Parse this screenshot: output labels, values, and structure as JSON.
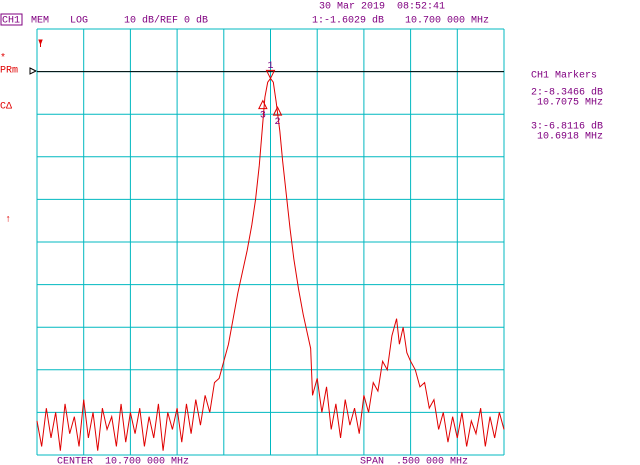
{
  "screen": {
    "channel": "CH1",
    "memory": "MEM",
    "format": "LOG",
    "scale": "10 dB/REF 0 dB",
    "datetime": "30 Mar 2019  08:52:41",
    "active_readout": "1:-1.6029 dB",
    "active_freq": "10.700 000 MHz",
    "left_labels": [
      "*",
      "PRm",
      "CΔ",
      "↑"
    ],
    "side_title": "CH1 Markers",
    "side_readouts": [
      [
        "2:-8.3466 dB",
        "10.7075 MHz"
      ],
      [
        "3:-6.8116 dB",
        "10.6918 MHz"
      ]
    ],
    "center": "CENTER  10.700 000 MHz",
    "span": "SPAN  .500 000 MHz"
  },
  "chart_data": {
    "type": "line",
    "xlim": [
      10.45,
      10.95
    ],
    "ylim": [
      -90,
      10
    ],
    "grid": true,
    "ref_level": 0,
    "x": [
      10.45,
      10.455,
      10.46,
      10.465,
      10.47,
      10.475,
      10.48,
      10.485,
      10.49,
      10.495,
      10.5,
      10.505,
      10.51,
      10.515,
      10.52,
      10.525,
      10.53,
      10.535,
      10.54,
      10.545,
      10.55,
      10.555,
      10.56,
      10.565,
      10.57,
      10.575,
      10.58,
      10.585,
      10.59,
      10.595,
      10.6,
      10.605,
      10.61,
      10.615,
      10.62,
      10.625,
      10.63,
      10.635,
      10.64,
      10.645,
      10.65,
      10.655,
      10.66,
      10.665,
      10.67,
      10.675,
      10.68,
      10.684,
      10.688,
      10.691,
      10.694,
      10.697,
      10.7,
      10.703,
      10.706,
      10.71,
      10.713,
      10.717,
      10.721,
      10.725,
      10.73,
      10.735,
      10.74,
      10.743,
      10.745,
      10.75,
      10.755,
      10.76,
      10.765,
      10.77,
      10.775,
      10.78,
      10.785,
      10.79,
      10.795,
      10.8,
      10.805,
      10.81,
      10.815,
      10.82,
      10.825,
      10.83,
      10.835,
      10.838,
      10.842,
      10.846,
      10.85,
      10.855,
      10.86,
      10.865,
      10.87,
      10.875,
      10.88,
      10.885,
      10.89,
      10.895,
      10.9,
      10.905,
      10.91,
      10.915,
      10.92,
      10.925,
      10.93,
      10.935,
      10.94,
      10.945,
      10.95
    ],
    "series": [
      {
        "color": "#e00000",
        "values": [
          -82,
          -88,
          -79,
          -86,
          -80,
          -89,
          -78,
          -85,
          -81,
          -88,
          -77,
          -86,
          -80,
          -89,
          -79,
          -84,
          -81,
          -88,
          -78,
          -87,
          -80,
          -85,
          -79,
          -88,
          -81,
          -86,
          -78,
          -89,
          -80,
          -84,
          -79,
          -87,
          -78,
          -85,
          -77,
          -83,
          -76,
          -80,
          -73,
          -72,
          -68,
          -64,
          -58,
          -52,
          -47,
          -42,
          -36,
          -30,
          -22,
          -14,
          -6,
          -2.5,
          -1.6,
          -2.5,
          -7,
          -14,
          -21,
          -29,
          -37,
          -44,
          -51,
          -57,
          -62,
          -65,
          -76,
          -72,
          -80,
          -74,
          -84,
          -78,
          -86,
          -77,
          -83,
          -79,
          -85,
          -76,
          -80,
          -73,
          -75,
          -68,
          -70,
          -62,
          -58,
          -64,
          -60,
          -66,
          -68,
          -70,
          -74,
          -73,
          -79,
          -77,
          -84,
          -80,
          -87,
          -81,
          -86,
          -80,
          -88,
          -82,
          -85,
          -79,
          -88,
          -81,
          -86,
          -80,
          -84
        ]
      }
    ],
    "markers": [
      {
        "label": "1",
        "x": 10.7,
        "value": -1.6029
      },
      {
        "label": "2",
        "x": 10.7075,
        "value": -8.3466
      },
      {
        "label": "3",
        "x": 10.6918,
        "value": -6.8116
      }
    ]
  }
}
